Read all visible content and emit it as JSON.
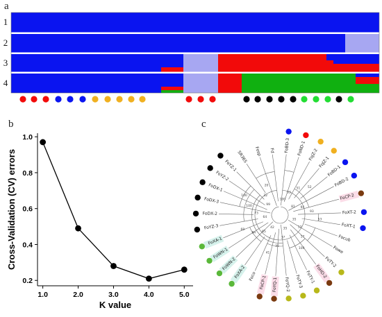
{
  "panels": {
    "a": "a",
    "b": "b",
    "c": "c"
  },
  "colors": {
    "blue": "#0a14f0",
    "lavender": "#a7a7f2",
    "red": "#f20a0a",
    "green": "#10b010",
    "orange": "#f0b020",
    "black": "#000000",
    "lightgreen": "#22dd33",
    "olive": "#b8b81a",
    "brown": "#7a3a10",
    "midgreen": "#5ab83a"
  },
  "chart_data": [
    {
      "type": "stacked-bar",
      "title": "",
      "rows": [
        "1",
        "2",
        "3",
        "4"
      ],
      "sample_dots": [
        "red",
        "red",
        "red",
        "blue",
        "blue",
        "blue",
        "orange",
        "orange",
        "orange",
        "orange",
        "orange",
        "red",
        "red",
        "red",
        "black",
        "black",
        "black",
        "black",
        "black",
        "lightgreen",
        "lightgreen",
        "lightgreen",
        "black",
        "lightgreen"
      ],
      "sample_dot_positions": [
        33,
        49,
        66,
        84,
        101,
        119,
        137,
        155,
        172,
        189,
        205,
        272,
        289,
        306,
        355,
        371,
        388,
        405,
        422,
        438,
        455,
        472,
        488,
        505
      ]
    },
    {
      "type": "line",
      "title": "",
      "xlabel": "K value",
      "ylabel": "Cross-Validation (CV) errors",
      "x": [
        1.0,
        2.0,
        3.0,
        4.0,
        5.0
      ],
      "y": [
        0.97,
        0.49,
        0.28,
        0.21,
        0.26
      ],
      "xticks": [
        "1.0",
        "2.0",
        "3.0",
        "4.0",
        "5.0"
      ],
      "yticks": [
        "0.2",
        "0.4",
        "0.6",
        "0.8",
        "1.0"
      ],
      "xlim": [
        0.85,
        5.25
      ],
      "ylim": [
        0.17,
        1.02
      ]
    },
    {
      "type": "tree",
      "title": "",
      "leaves": [
        {
          "label": "FoBD-3",
          "angle": -84,
          "dot": "blue"
        },
        {
          "label": "FoND-1",
          "angle": -72,
          "dot": "red"
        },
        {
          "label": "FoJZ-2",
          "angle": -61,
          "dot": "orange"
        },
        {
          "label": "FoJZ-1",
          "angle": -50,
          "dot": "orange"
        },
        {
          "label": "FoBD-1",
          "angle": -39,
          "dot": "blue"
        },
        {
          "label": "FoBD-2",
          "angle": -28,
          "dot": "blue"
        },
        {
          "label": "FoCP-2",
          "angle": -15,
          "dot": "brown"
        },
        {
          "label": "FoXT-2",
          "angle": -2,
          "dot": "blue"
        },
        {
          "label": "FoXT-1",
          "angle": 9,
          "dot": "blue"
        },
        {
          "label": "Focub",
          "angle": 20,
          "dot": ""
        },
        {
          "label": "Fowe",
          "angle": 31,
          "dot": ""
        },
        {
          "label": "FoTY-2",
          "angle": 43,
          "dot": "olive"
        },
        {
          "label": "FoHD-2",
          "angle": 54,
          "dot": "brown"
        },
        {
          "label": "FoTY-1",
          "angle": 64,
          "dot": "olive"
        },
        {
          "label": "FoTY-3",
          "angle": 74,
          "dot": "olive"
        },
        {
          "label": "FoYQ-2",
          "angle": 84,
          "dot": "olive"
        },
        {
          "label": "FoYQ-1",
          "angle": 94,
          "dot": "brown"
        },
        {
          "label": "FoCP-1",
          "angle": 104,
          "dot": "brown"
        },
        {
          "label": "Foco",
          "angle": 114,
          "dot": ""
        },
        {
          "label": "FoXA-2",
          "angle": 125,
          "dot": "midgreen"
        },
        {
          "label": "FoWN-2",
          "angle": 136,
          "dot": "midgreen"
        },
        {
          "label": "FoWN-1",
          "angle": 147,
          "dot": "midgreen"
        },
        {
          "label": "FoXA-1",
          "angle": 158,
          "dot": "midgreen"
        },
        {
          "label": "FoYZ-3",
          "angle": 170,
          "dot": "black"
        },
        {
          "label": "FoDX-2",
          "angle": 181,
          "dot": "black"
        },
        {
          "label": "FoDX-3",
          "angle": 192,
          "dot": "black"
        },
        {
          "label": "FoDX-1",
          "angle": 203,
          "dot": "black"
        },
        {
          "label": "FoYZ-2",
          "angle": 214,
          "dot": "black"
        },
        {
          "label": "FoYZ-1",
          "angle": 225,
          "dot": "black"
        },
        {
          "label": "SR365",
          "angle": 237,
          "dot": ""
        },
        {
          "label": "Fosp",
          "angle": 251,
          "dot": ""
        },
        {
          "label": "Fd",
          "angle": 263,
          "dot": ""
        }
      ],
      "node_values": [
        "100",
        "63",
        "51",
        "52",
        "81",
        "94",
        "93",
        "53",
        "35",
        "12",
        "17",
        "100",
        "35",
        "37",
        "35",
        "41",
        "42",
        "65",
        "84",
        "69",
        "64",
        "73",
        "100",
        "100",
        "99",
        "32",
        "20"
      ]
    }
  ]
}
